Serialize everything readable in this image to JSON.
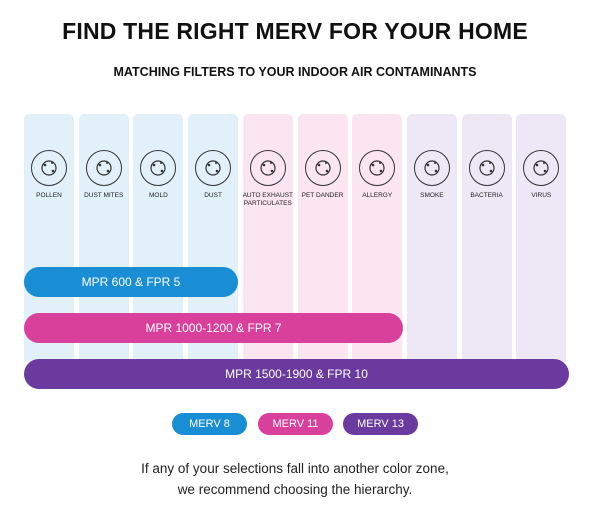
{
  "header": {
    "title": "FIND THE RIGHT MERV FOR YOUR HOME",
    "subtitle": "MATCHING FILTERS TO YOUR INDOOR AIR CONTAMINANTS"
  },
  "contaminants": [
    "POLLEN",
    "DUST MITES",
    "MOLD",
    "DUST",
    "AUTO EXHAUST PARTICULATES",
    "PET DANDER",
    "ALLERGY",
    "SMOKE",
    "BACTERIA",
    "VIRUS"
  ],
  "filters": [
    "MPR 600 & FPR 5",
    "MPR 1000-1200 & FPR 7",
    "MPR 1500-1900 & FPR 10"
  ],
  "legend": [
    "MERV 8",
    "MERV 11",
    "MERV 13"
  ],
  "footer": [
    "If any of your selections fall into another color zone,",
    "we recommend choosing the hierarchy."
  ]
}
